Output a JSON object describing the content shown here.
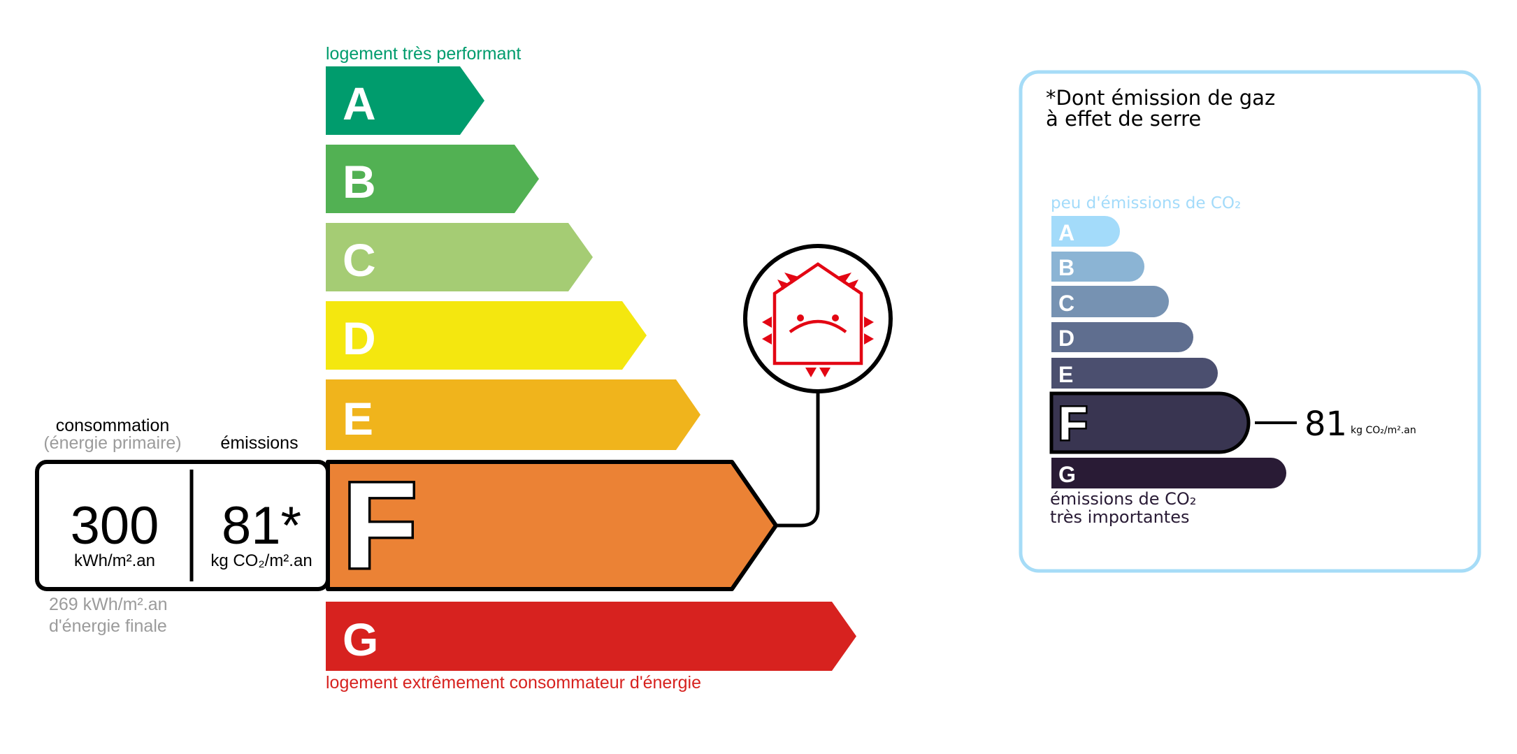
{
  "energy": {
    "top_label": "logement très performant",
    "bottom_label": "logement extrêmement consommateur d'énergie",
    "top_label_color": "#009c6d",
    "bottom_label_color": "#d7221f",
    "current_grade": "F",
    "grades": [
      {
        "letter": "A",
        "color": "#009c6d"
      },
      {
        "letter": "B",
        "color": "#52b153"
      },
      {
        "letter": "C",
        "color": "#a5cc74"
      },
      {
        "letter": "D",
        "color": "#f4e70f"
      },
      {
        "letter": "E",
        "color": "#f0b41c"
      },
      {
        "letter": "F",
        "color": "#eb8235"
      },
      {
        "letter": "G",
        "color": "#d7221f"
      }
    ],
    "consumption_label": "consommation",
    "consumption_sublabel": "(énergie primaire)",
    "emissions_label": "émissions",
    "consumption_value": "300",
    "consumption_unit": "kWh/m².an",
    "emissions_value": "81*",
    "emissions_unit": "kg CO₂/m².an",
    "final_energy_line1": "269 kWh/m².an",
    "final_energy_line2": "d'énergie finale",
    "badge_icon": "sad-house-heat-loss-icon",
    "badge_color": "#e30613"
  },
  "ges": {
    "title_line1": "*Dont émission de gaz",
    "title_line2": "à effet de serre",
    "top_label": "peu d'émissions de CO₂",
    "bottom_label_line1": "émissions de CO₂",
    "bottom_label_line2": "très importantes",
    "border_color": "#a6dcf7",
    "current_grade": "F",
    "value": "81",
    "unit": "kg CO₂/m².an",
    "grades": [
      {
        "letter": "A",
        "color": "#a3dbfa"
      },
      {
        "letter": "B",
        "color": "#8bb4d4"
      },
      {
        "letter": "C",
        "color": "#7692b2"
      },
      {
        "letter": "D",
        "color": "#5f6e8f"
      },
      {
        "letter": "E",
        "color": "#4b4f6f"
      },
      {
        "letter": "F",
        "color": "#393551"
      },
      {
        "letter": "G",
        "color": "#291b35"
      }
    ]
  }
}
